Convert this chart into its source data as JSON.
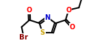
{
  "bg_color": "#ffffff",
  "line_color": "#000000",
  "bond_width": 1.5,
  "figsize": [
    1.39,
    0.72
  ],
  "dpi": 100,
  "S_color": "#c8a000",
  "N_color": "#0000cd",
  "O_color": "#ff0000",
  "Br_color": "#8b0000",
  "text_fontsize": 7.0,
  "xlim": [
    0,
    14
  ],
  "ylim": [
    0,
    7.2
  ]
}
